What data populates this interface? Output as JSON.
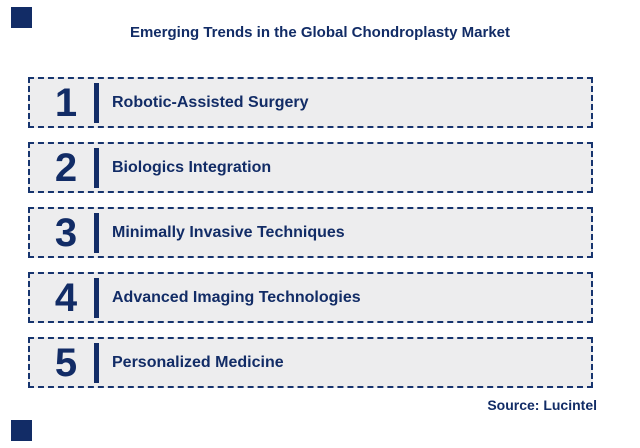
{
  "title": "Emerging Trends in the Global Chondroplasty Market",
  "trends": [
    {
      "number": "1",
      "label": "Robotic-Assisted Surgery"
    },
    {
      "number": "2",
      "label": "Biologics Integration"
    },
    {
      "number": "3",
      "label": "Minimally Invasive Techniques"
    },
    {
      "number": "4",
      "label": "Advanced Imaging Technologies"
    },
    {
      "number": "5",
      "label": "Personalized Medicine"
    }
  ],
  "source": "Source: Lucintel",
  "colors": {
    "navy": "#122c66",
    "border_navy": "#17356f",
    "row_bg": "#ededee",
    "page_bg": "#ffffff"
  }
}
